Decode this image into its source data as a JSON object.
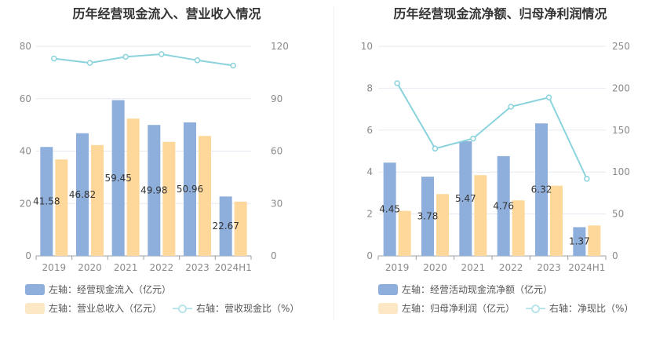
{
  "colors": {
    "bar1": "#8eaedc",
    "bar2": "#fdd89a",
    "line": "#8ad3dc",
    "grid": "#e6e9f0",
    "axis": "#9aa0a6"
  },
  "chart_data": [
    {
      "type": "bar",
      "title": "历年经营现金流入、营业收入情况",
      "categories": [
        "2019",
        "2020",
        "2021",
        "2022",
        "2023",
        "2024H1"
      ],
      "left_axis": {
        "ylim": [
          0,
          80
        ],
        "ticks": [
          "0",
          "20",
          "40",
          "60",
          "80"
        ]
      },
      "right_axis": {
        "ylim": [
          0,
          120
        ],
        "ticks": [
          "0",
          "30",
          "60",
          "90",
          "120"
        ]
      },
      "series": [
        {
          "name": "左轴：经营现金流入（亿元）",
          "type": "bar",
          "axis": "left",
          "values": [
            41.58,
            46.82,
            59.45,
            49.98,
            50.96,
            22.67
          ],
          "labels": [
            "41.58",
            "46.82",
            "59.45",
            "49.98",
            "50.96",
            "22.67"
          ]
        },
        {
          "name": "左轴：营业总收入（亿元）",
          "type": "bar",
          "axis": "left",
          "values": [
            36.8,
            42.3,
            52.4,
            43.5,
            45.8,
            20.7
          ]
        },
        {
          "name": "右轴：营收现金比（%）",
          "type": "line",
          "axis": "right",
          "values": [
            113,
            110.5,
            114,
            115.5,
            112,
            109
          ]
        }
      ]
    },
    {
      "type": "bar",
      "title": "历年经营现金流净额、归母净利润情况",
      "categories": [
        "2019",
        "2020",
        "2021",
        "2022",
        "2023",
        "2024H1"
      ],
      "left_axis": {
        "ylim": [
          0,
          10
        ],
        "ticks": [
          "0",
          "2",
          "4",
          "6",
          "8",
          "10"
        ]
      },
      "right_axis": {
        "ylim": [
          0,
          250
        ],
        "ticks": [
          "0",
          "50",
          "100",
          "150",
          "200",
          "250"
        ]
      },
      "series": [
        {
          "name": "左轴：经营活动现金流净额（亿元）",
          "type": "bar",
          "axis": "left",
          "values": [
            4.45,
            3.78,
            5.47,
            4.76,
            6.32,
            1.37
          ],
          "labels": [
            "4.45",
            "3.78",
            "5.47",
            "4.76",
            "6.32",
            "1.37"
          ]
        },
        {
          "name": "左轴：归母净利润（亿元）",
          "type": "bar",
          "axis": "left",
          "values": [
            2.15,
            2.95,
            3.85,
            2.65,
            3.35,
            1.45
          ]
        },
        {
          "name": "右轴：净现比（%）",
          "type": "line",
          "axis": "right",
          "values": [
            206,
            128,
            140,
            178,
            189,
            92
          ]
        }
      ]
    }
  ]
}
